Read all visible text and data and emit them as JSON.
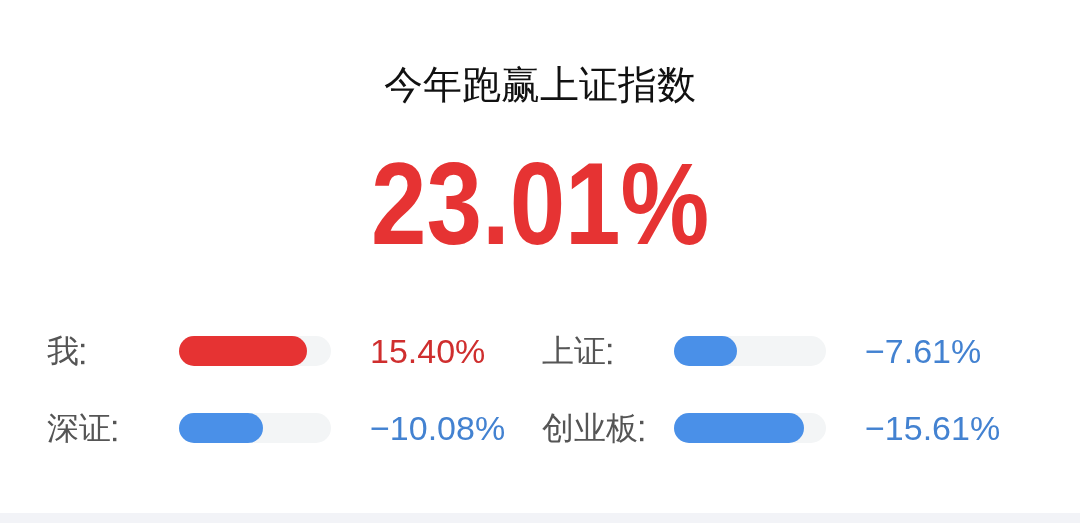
{
  "chart_data": [
    {
      "type": "other",
      "title": "今年跑赢上证指数",
      "subtitle": "23.01%"
    },
    {
      "type": "other",
      "categories": [
        "我",
        "深证"
      ],
      "values": [
        15.4,
        -10.08
      ],
      "value_labels": [
        "15.40%",
        "−10.08%"
      ],
      "colors": [
        "#e63333",
        "#4a90e8"
      ]
    },
    {
      "type": "other",
      "categories": [
        "上证",
        "创业板"
      ],
      "values": [
        -7.61,
        -15.61
      ],
      "value_labels": [
        "−7.61%",
        "−15.61%"
      ],
      "colors": [
        "#4a90e8",
        "#4a90e8"
      ]
    }
  ]
}
